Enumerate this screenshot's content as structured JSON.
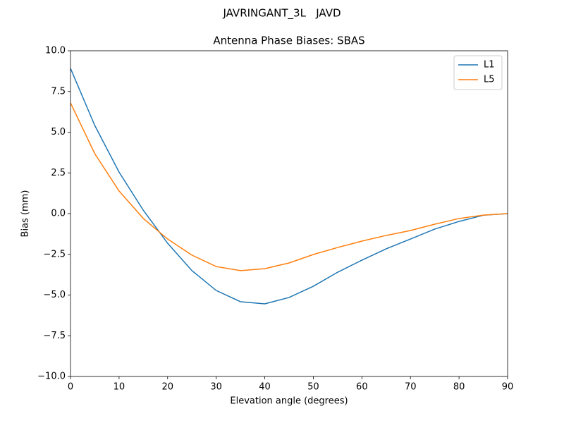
{
  "chart_data": {
    "type": "line",
    "suptitle": "JAVRINGANT_3L   JAVD",
    "title": "Antenna Phase Biases: SBAS",
    "xlabel": "Elevation angle (degrees)",
    "ylabel": "Bias (mm)",
    "x": [
      0,
      5,
      10,
      15,
      20,
      25,
      30,
      35,
      40,
      45,
      50,
      55,
      60,
      65,
      70,
      75,
      80,
      85,
      90
    ],
    "series": [
      {
        "name": "L1",
        "color": "#1f77b4",
        "values": [
          8.92,
          5.41,
          2.55,
          0.2,
          -1.82,
          -3.5,
          -4.72,
          -5.41,
          -5.54,
          -5.15,
          -4.46,
          -3.6,
          -2.86,
          -2.16,
          -1.56,
          -0.95,
          -0.48,
          -0.1,
          0
        ]
      },
      {
        "name": "L5",
        "color": "#ff7f0e",
        "values": [
          6.8,
          3.68,
          1.39,
          -0.3,
          -1.56,
          -2.55,
          -3.25,
          -3.5,
          -3.38,
          -3.03,
          -2.51,
          -2.08,
          -1.69,
          -1.34,
          -1.04,
          -0.65,
          -0.3,
          -0.09,
          0
        ]
      }
    ],
    "xlim": [
      0,
      90
    ],
    "xticks": [
      0,
      10,
      20,
      30,
      40,
      50,
      60,
      70,
      80,
      90
    ],
    "ylim": [
      -10,
      10
    ],
    "yticks": [
      {
        "value": -10,
        "label": "−10.0"
      },
      {
        "value": -7.5,
        "label": "−7.5"
      },
      {
        "value": -5,
        "label": "−5.0"
      },
      {
        "value": -2.5,
        "label": "−2.5"
      },
      {
        "value": 0,
        "label": "0.0"
      },
      {
        "value": 2.5,
        "label": "2.5"
      },
      {
        "value": 5,
        "label": "5.0"
      },
      {
        "value": 7.5,
        "label": "7.5"
      },
      {
        "value": 10,
        "label": "10.0"
      }
    ],
    "legend": "upper right"
  }
}
